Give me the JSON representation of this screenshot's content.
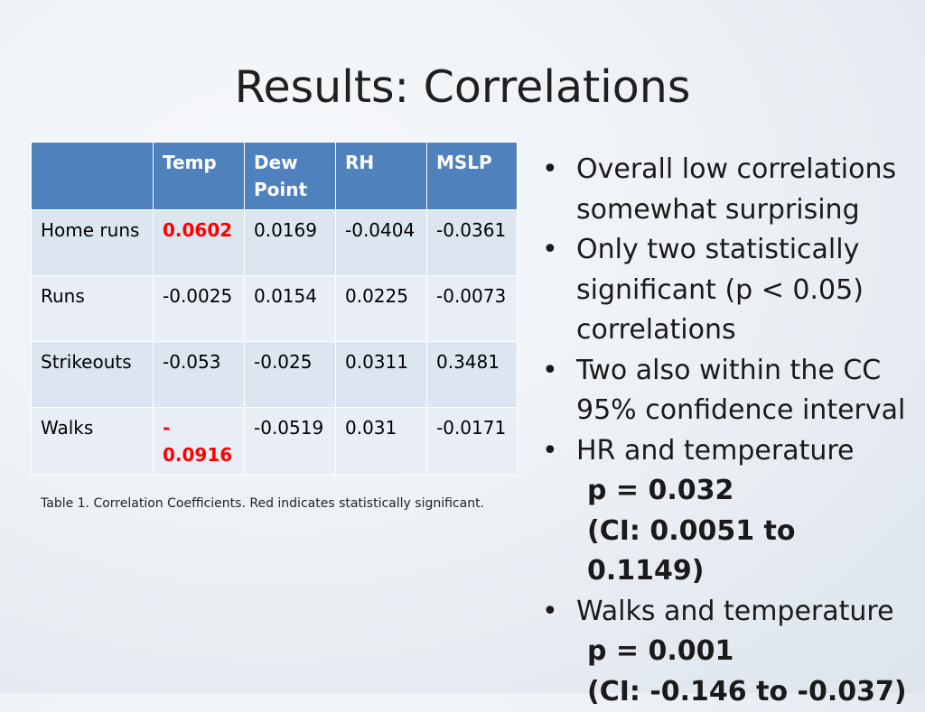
{
  "slide": {
    "title": "Results: Correlations"
  },
  "table": {
    "headers": [
      "",
      "Temp",
      "Dew Point",
      "RH",
      "MSLP"
    ],
    "rows": [
      {
        "label": "Home runs",
        "cells": [
          "0.0602",
          "0.0169",
          "-0.0404",
          "-0.0361"
        ]
      },
      {
        "label": "Runs",
        "cells": [
          "-0.0025",
          "0.0154",
          "0.0225",
          "-0.0073"
        ]
      },
      {
        "label": "Strikeouts",
        "cells": [
          "-0.053",
          "-0.025",
          "0.0311",
          "0.3481"
        ]
      },
      {
        "label": "Walks",
        "cells": [
          "-\n0.0916",
          "-0.0519",
          "0.031",
          "-0.0171"
        ]
      }
    ],
    "caption": "Table 1. Correlation Coefficients.  Red indicates statistically significant.",
    "significant_color": "#ff0000",
    "header_color": "#4f81bd"
  },
  "bullets": [
    {
      "text": "Overall low correlations somewhat surprising"
    },
    {
      "text": "Only two statistically significant (p < 0.05) correlations"
    },
    {
      "text": "Two also within the CC 95% confidence interval"
    },
    {
      "text": "HR and temperature",
      "details": [
        "p = 0.032",
        "(CI: 0.0051 to 0.1149)"
      ]
    },
    {
      "text": "Walks and temperature",
      "details": [
        "p = 0.001",
        "(CI: -0.146 to -0.037)"
      ]
    }
  ]
}
